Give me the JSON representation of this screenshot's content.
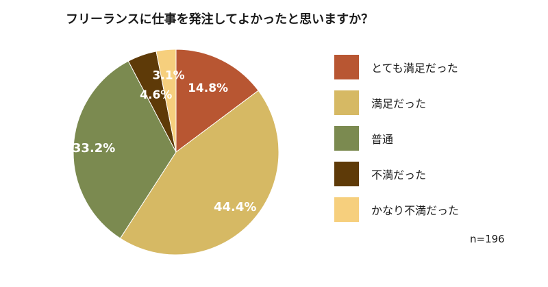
{
  "title": "フリーランスに仕事を発注してよかったと思いますか？",
  "note": "n=196",
  "chart_data": {
    "type": "pie",
    "title": "フリーランスに仕事を発注してよかったと思いますか？",
    "start": "12 o'clock, clockwise",
    "legend_position": "right",
    "slices": [
      {
        "label": "とても満足だった",
        "value": 14.8,
        "display": "14.8%",
        "color": "#B85632"
      },
      {
        "label": "満足だった",
        "value": 44.4,
        "display": "44.4%",
        "color": "#D6B964"
      },
      {
        "label": "普通",
        "value": 33.2,
        "display": "33.2%",
        "color": "#7B8A50"
      },
      {
        "label": "不満だった",
        "value": 4.6,
        "display": "4.6%",
        "color": "#5E3A08"
      },
      {
        "label": "かなり不満だった",
        "value": 3.1,
        "display": "3.1%",
        "color": "#F6CF7D"
      }
    ]
  }
}
